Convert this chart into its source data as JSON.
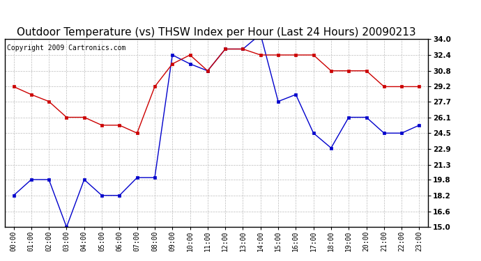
{
  "title": "Outdoor Temperature (vs) THSW Index per Hour (Last 24 Hours) 20090213",
  "copyright": "Copyright 2009 Cartronics.com",
  "hours": [
    "00:00",
    "01:00",
    "02:00",
    "03:00",
    "04:00",
    "05:00",
    "06:00",
    "07:00",
    "08:00",
    "09:00",
    "10:00",
    "11:00",
    "12:00",
    "13:00",
    "14:00",
    "15:00",
    "16:00",
    "17:00",
    "18:00",
    "19:00",
    "20:00",
    "21:00",
    "22:00",
    "23:00"
  ],
  "blue_data": [
    18.2,
    19.8,
    19.8,
    15.0,
    19.8,
    18.2,
    18.2,
    20.0,
    20.0,
    32.4,
    31.5,
    30.8,
    33.0,
    33.0,
    34.5,
    27.7,
    28.4,
    24.5,
    23.0,
    26.1,
    26.1,
    24.5,
    24.5,
    25.3
  ],
  "red_data": [
    29.2,
    28.4,
    27.7,
    26.1,
    26.1,
    25.3,
    25.3,
    24.5,
    29.2,
    31.5,
    32.4,
    30.8,
    33.0,
    33.0,
    32.4,
    32.4,
    32.4,
    32.4,
    30.8,
    30.8,
    30.8,
    29.2,
    29.2,
    29.2
  ],
  "ylim_min": 15.0,
  "ylim_max": 34.0,
  "yticks": [
    15.0,
    16.6,
    18.2,
    19.8,
    21.3,
    22.9,
    24.5,
    26.1,
    27.7,
    29.2,
    30.8,
    32.4,
    34.0
  ],
  "blue_color": "#0000cc",
  "red_color": "#cc0000",
  "bg_color": "#ffffff",
  "grid_color": "#bbbbbb",
  "title_fontsize": 11,
  "copyright_fontsize": 7,
  "tick_fontsize": 7.5,
  "xtick_fontsize": 7
}
